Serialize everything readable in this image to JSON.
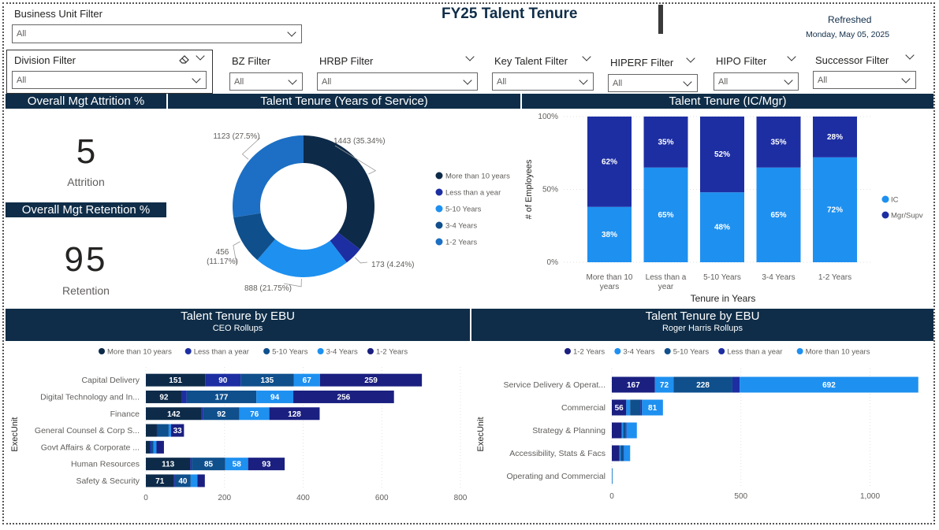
{
  "title": "FY25 Talent Tenure",
  "refresh": {
    "label": "Refreshed",
    "date": "Monday, May 05, 2025"
  },
  "colors": {
    "navy_dark": "#0d2a49",
    "royal": "#1d2ea3",
    "mid_blue": "#0f4f8c",
    "bright_blue": "#1e90f0",
    "steel_blue": "#1c6fc4",
    "header_bg": "#0f2d48"
  },
  "filters": {
    "business_unit": {
      "label": "Business Unit Filter",
      "value": "All"
    },
    "division": {
      "label": "Division Filter",
      "value": "All"
    },
    "bz": {
      "label": "BZ Filter",
      "value": "All"
    },
    "hrbp": {
      "label": "HRBP Filter",
      "value": "All"
    },
    "key_talent": {
      "label": "Key Talent Filter",
      "value": "All"
    },
    "hiperf": {
      "label": "HIPERF Filter",
      "value": "All"
    },
    "hipo": {
      "label": "HIPO Filter",
      "value": "All"
    },
    "successor": {
      "label": "Successor Filter",
      "value": "All"
    }
  },
  "kpis": {
    "attrition": {
      "header": "Overall Mgt Attrition %",
      "value": "5",
      "label": "Attrition"
    },
    "retention": {
      "header": "Overall Mgt Retention %",
      "value": "95",
      "label": "Retention"
    }
  },
  "chart_data": [
    {
      "type": "pie",
      "title": "Talent Tenure (Years of Service)",
      "donut": true,
      "slices": [
        {
          "name": "More than 10 years",
          "value": 1443,
          "label": "1443 (35.34%)",
          "color": "#0d2a49"
        },
        {
          "name": "Less than a year",
          "value": 173,
          "label": "173 (4.24%)",
          "color": "#1d2ea3"
        },
        {
          "name": "5-10 Years",
          "value": 888,
          "label": "888 (21.75%)",
          "color": "#1e90f0"
        },
        {
          "name": "3-4 Years",
          "value": 456,
          "label": "456 (11.17%)",
          "color": "#0f4f8c"
        },
        {
          "name": "1-2 Years",
          "value": 1123,
          "label": "1123 (27.5%)",
          "color": "#1c6fc4"
        }
      ],
      "legend": [
        "More than 10 years",
        "Less than a year",
        "5-10 Years",
        "3-4 Years",
        "1-2 Years"
      ]
    },
    {
      "type": "bar",
      "stacked": "100%",
      "title": "Talent Tenure (IC/Mgr)",
      "xlabel": "Tenure in Years",
      "ylabel": "# of Employees",
      "categories": [
        "More than 10 years",
        "Less than a year",
        "5-10 Years",
        "3-4 Years",
        "1-2 Years"
      ],
      "yticks": [
        "0%",
        "50%",
        "100%"
      ],
      "series": [
        {
          "name": "IC",
          "color": "#1e90f0",
          "values": [
            38,
            65,
            48,
            65,
            72
          ],
          "labels": [
            "38%",
            "65%",
            "48%",
            "65%",
            "72%"
          ]
        },
        {
          "name": "Mgr/Supv",
          "color": "#1d2ea3",
          "values": [
            62,
            35,
            52,
            35,
            28
          ],
          "labels": [
            "62%",
            "35%",
            "52%",
            "35%",
            "28%"
          ]
        }
      ]
    },
    {
      "type": "bar",
      "orientation": "horizontal",
      "stacked": true,
      "title": "Talent Tenure by EBU",
      "subtitle": "CEO Rollups",
      "ylabel": "ExecUnit",
      "xlim": [
        0,
        800
      ],
      "xticks": [
        "0",
        "200",
        "400",
        "600",
        "800"
      ],
      "categories": [
        "Capital Delivery",
        "Digital Technology and In...",
        "Finance",
        "General Counsel & Corp S...",
        "Govt Affairs & Corporate ...",
        "Human Resources",
        "Safety & Security"
      ],
      "series": [
        {
          "name": "More than 10 years",
          "color": "#0d2a49",
          "values": [
            151,
            92,
            142,
            28,
            10,
            113,
            71
          ],
          "labels": [
            "151",
            "92",
            "142",
            "",
            "",
            "113",
            "71"
          ]
        },
        {
          "name": "Less than a year",
          "color": "#1d2ea3",
          "values": [
            90,
            12,
            4,
            2,
            3,
            4,
            3
          ],
          "labels": [
            "90",
            "",
            "",
            "",
            "",
            "",
            ""
          ]
        },
        {
          "name": "5-10 Years",
          "color": "#0f4f8c",
          "values": [
            135,
            177,
            92,
            28,
            6,
            85,
            40
          ],
          "labels": [
            "135",
            "177",
            "92",
            "",
            "",
            "85",
            "40"
          ]
        },
        {
          "name": "3-4 Years",
          "color": "#1e90f0",
          "values": [
            67,
            94,
            76,
            6,
            8,
            58,
            17
          ],
          "labels": [
            "67",
            "94",
            "76",
            "",
            "",
            "58",
            ""
          ]
        },
        {
          "name": "1-2 Years",
          "color": "#1a1f80",
          "values": [
            259,
            256,
            128,
            33,
            19,
            93,
            19
          ],
          "labels": [
            "259",
            "256",
            "128",
            "33",
            "",
            "93",
            ""
          ]
        }
      ],
      "legend": [
        "More than 10 years",
        "Less than a year",
        "5-10 Years",
        "3-4 Years",
        "1-2 Years"
      ]
    },
    {
      "type": "bar",
      "orientation": "horizontal",
      "stacked": true,
      "title": "Talent Tenure by EBU",
      "subtitle": "Roger Harris Rollups",
      "ylabel": "ExecUnit",
      "xlim": [
        0,
        1200
      ],
      "xticks": [
        "0",
        "500",
        "1,000"
      ],
      "categories": [
        "Service Delivery & Operat...",
        "Commercial",
        "Strategy & Planning",
        "Accessibility, Stats & Facs",
        "Operating and Commercial"
      ],
      "series": [
        {
          "name": "1-2 Years",
          "color": "#1a1f80",
          "values": [
            167,
            56,
            38,
            30,
            0
          ],
          "labels": [
            "167",
            "56",
            "",
            "",
            ""
          ]
        },
        {
          "name": "3-4 Years",
          "color": "#1e90f0",
          "values": [
            72,
            15,
            6,
            4,
            2
          ],
          "labels": [
            "72",
            "",
            "",
            "",
            ""
          ]
        },
        {
          "name": "5-10 Years",
          "color": "#0f4f8c",
          "values": [
            228,
            40,
            10,
            10,
            1
          ],
          "labels": [
            "228",
            "",
            "",
            "",
            ""
          ]
        },
        {
          "name": "Less than a year",
          "color": "#1d2ea3",
          "values": [
            28,
            6,
            3,
            3,
            0
          ],
          "labels": [
            "",
            "",
            "",
            "",
            ""
          ]
        },
        {
          "name": "More than 10 years",
          "color": "#1e90f0",
          "values": [
            692,
            81,
            40,
            24,
            0
          ],
          "labels": [
            "692",
            "81",
            "",
            "",
            ""
          ]
        }
      ],
      "legend": [
        "1-2 Years",
        "3-4 Years",
        "5-10 Years",
        "Less than a year",
        "More than 10 years"
      ]
    }
  ]
}
